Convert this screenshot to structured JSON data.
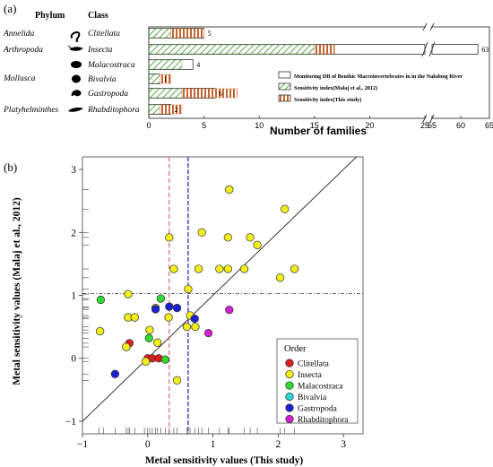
{
  "panel_a": {
    "label": "(a)",
    "phylum_header": "Phylum",
    "class_header": "Class",
    "xlabel": "Number of families",
    "xticks": [
      "0",
      "5",
      "10",
      "15",
      "20",
      "25",
      "55",
      "60",
      "65"
    ],
    "rows": [
      {
        "phylum": "Annelida",
        "class": "Clitellata"
      },
      {
        "phylum": "Arthropoda",
        "class": "Insecta"
      },
      {
        "phylum": "",
        "class": "Malacostraca"
      },
      {
        "phylum": "Mollusca",
        "class": "Bivalvia"
      },
      {
        "phylum": "",
        "class": "Gastropoda"
      },
      {
        "phylum": "Platyhelminthes",
        "class": "Rhabditophora"
      }
    ],
    "legend": [
      "Monitoring DB of Benthic Macroinvertebrates in in the Nakdong River",
      "Sensitivity index(Malaj et al., 2012)",
      "Sensitivity index(This study)"
    ],
    "bar_labels": [
      "5",
      "63",
      "4",
      "1",
      "6",
      "2"
    ],
    "colors": {
      "green": "#5fa550",
      "orange": "#c8642d",
      "border": "#333333"
    }
  },
  "panel_b": {
    "label": "(b)",
    "xlabel": "Metal sensitivity values (This  study)",
    "ylabel": "Metal sensitivity values (Malaj et al., 2012)",
    "legend_title": "Order",
    "legend": [
      {
        "name": "Clitellata",
        "color": "#dd1c1c"
      },
      {
        "name": "Insecta",
        "color": "#f2ee1c"
      },
      {
        "name": "Malacostraca",
        "color": "#2fd92f"
      },
      {
        "name": "Bivalvia",
        "color": "#2ad4d4"
      },
      {
        "name": "Gastropoda",
        "color": "#1d22cf"
      },
      {
        "name": "Rhabditophora",
        "color": "#d21fd2"
      }
    ]
  },
  "chart_data": [
    {
      "type": "bar",
      "orientation": "horizontal",
      "categories": [
        "Clitellata",
        "Insecta",
        "Malacostraca",
        "Bivalvia",
        "Gastropoda",
        "Rhabditophora"
      ],
      "series": [
        {
          "name": "Monitoring DB of Benthic Macroinvertebrates in in the Nakdong River",
          "values": [
            5,
            63,
            4,
            1,
            6,
            2
          ]
        },
        {
          "name": "Sensitivity index(Malaj et al., 2012)",
          "values": [
            2,
            15,
            3,
            1,
            3,
            1
          ]
        },
        {
          "name": "Sensitivity index(This study)",
          "values": [
            3,
            23,
            0,
            1,
            5,
            2
          ]
        }
      ],
      "xlabel": "Number of families",
      "axis_break": [
        25,
        55
      ],
      "xlim": [
        0,
        65
      ]
    },
    {
      "type": "scatter",
      "xlabel": "Metal sensitivity values (This  study)",
      "ylabel": "Metal sensitivity values (Malaj et al., 2012)",
      "xlim": [
        -1,
        3.3
      ],
      "ylim": [
        -1.2,
        3.2
      ],
      "xticks": [
        -1,
        0,
        1,
        2,
        3
      ],
      "yticks": [
        -1,
        0,
        1,
        2,
        3
      ],
      "reference_lines": {
        "identity": true,
        "horizontal_y": 1.03,
        "vertical_red_x": 0.33,
        "vertical_blue_x": 0.62
      },
      "series": [
        {
          "name": "Clitellata",
          "points": [
            [
              -0.28,
              0.24
            ],
            [
              0.0,
              0.0
            ],
            [
              0.07,
              0.0
            ],
            [
              0.17,
              0.0
            ]
          ]
        },
        {
          "name": "Insecta",
          "points": [
            [
              -0.73,
              0.43
            ],
            [
              -0.3,
              1.02
            ],
            [
              -0.3,
              0.65
            ],
            [
              -0.33,
              0.18
            ],
            [
              -0.2,
              0.65
            ],
            [
              -0.03,
              -0.05
            ],
            [
              0.03,
              0.45
            ],
            [
              0.15,
              0.25
            ],
            [
              0.12,
              0.8
            ],
            [
              0.32,
              0.65
            ],
            [
              0.33,
              1.92
            ],
            [
              0.4,
              1.42
            ],
            [
              0.45,
              -0.35
            ],
            [
              0.6,
              0.5
            ],
            [
              0.62,
              1.1
            ],
            [
              0.65,
              0.68
            ],
            [
              0.73,
              0.5
            ],
            [
              0.78,
              1.42
            ],
            [
              0.83,
              2.0
            ],
            [
              1.1,
              1.42
            ],
            [
              1.23,
              1.92
            ],
            [
              1.23,
              1.42
            ],
            [
              1.25,
              2.68
            ],
            [
              1.48,
              1.42
            ],
            [
              1.57,
              1.92
            ],
            [
              1.68,
              1.8
            ],
            [
              2.03,
              1.28
            ],
            [
              2.1,
              2.37
            ],
            [
              2.25,
              1.42
            ]
          ]
        },
        {
          "name": "Malacostraca",
          "points": [
            [
              -0.72,
              0.93
            ],
            [
              0.02,
              0.32
            ],
            [
              0.2,
              0.95
            ],
            [
              0.27,
              -0.02
            ]
          ]
        },
        {
          "name": "Bivalvia",
          "points": []
        },
        {
          "name": "Gastropoda",
          "points": [
            [
              -0.5,
              -0.25
            ],
            [
              0.12,
              0.78
            ],
            [
              0.33,
              0.82
            ],
            [
              0.45,
              0.8
            ],
            [
              0.72,
              0.63
            ]
          ]
        },
        {
          "name": "Rhabditophora",
          "points": [
            [
              0.93,
              0.4
            ],
            [
              1.25,
              0.77
            ]
          ]
        }
      ],
      "rug_x": [
        -0.75,
        -0.68,
        -0.5,
        -0.33,
        -0.3,
        -0.28,
        -0.2,
        -0.05,
        0.0,
        0.03,
        0.07,
        0.12,
        0.15,
        0.2,
        0.27,
        0.33,
        0.4,
        0.45,
        0.6,
        0.62,
        0.65,
        0.72,
        0.78,
        0.83,
        0.93,
        1.1,
        1.23,
        1.25,
        1.48,
        1.57,
        1.68,
        2.03,
        2.1,
        2.25
      ],
      "rug_y": [
        -0.35,
        -0.25,
        -0.05,
        0.0,
        0.18,
        0.24,
        0.32,
        0.4,
        0.45,
        0.5,
        0.63,
        0.65,
        0.68,
        0.77,
        0.8,
        0.82,
        0.93,
        0.95,
        1.02,
        1.1,
        1.28,
        1.42,
        1.8,
        1.92,
        2.0,
        2.37,
        2.68
      ]
    }
  ]
}
